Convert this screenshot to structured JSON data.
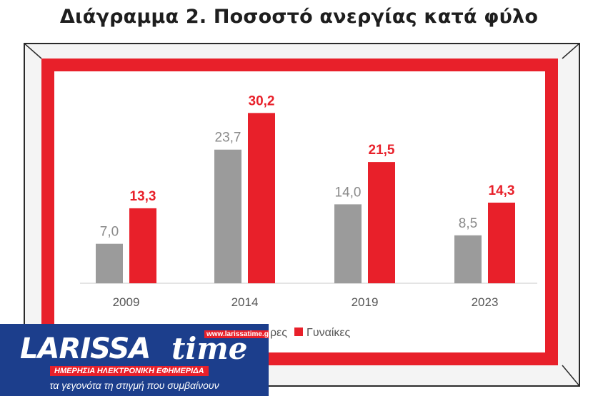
{
  "title": "Διάγραμμα 2. Ποσοστό ανεργίας κατά φύλο",
  "chart_data": {
    "type": "bar",
    "categories": [
      "2009",
      "2014",
      "2019",
      "2023"
    ],
    "series": [
      {
        "name": "Άνδρες",
        "values": [
          7.0,
          23.7,
          14.0,
          8.5
        ],
        "labels": [
          "7,0",
          "23,7",
          "14,0",
          "8,5"
        ],
        "color": "#9b9b9b"
      },
      {
        "name": "Γυναίκες",
        "values": [
          13.3,
          30.2,
          21.5,
          14.3
        ],
        "labels": [
          "13,3",
          "30,2",
          "21,5",
          "14,3"
        ],
        "color": "#e8202a"
      }
    ],
    "legend_visible_texts": [
      "ρες",
      "Γυναίκες"
    ],
    "legend_position": "bottom",
    "grid": false,
    "ylim": [
      0,
      32
    ]
  },
  "watermark": {
    "name": "LARISSA",
    "name2": "time",
    "url": "www.larissatime.gr",
    "subtitle": "ΗΜΕΡΗΣΙΑ ΗΛΕΚΤΡΟΝΙΚΗ ΕΦΗΜΕΡΙΔΑ",
    "slogan": "τα γεγονότα τη στιγμή που συμβαίνουν",
    "colors": {
      "blue": "#1c3e8c",
      "red": "#e8202a"
    }
  }
}
